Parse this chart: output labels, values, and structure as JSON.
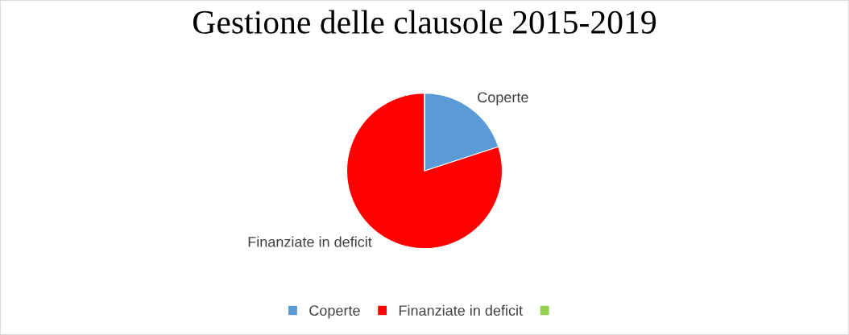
{
  "chart_data": {
    "type": "pie",
    "title": "Gestione delle clausole 2015-2019",
    "categories": [
      "Coperte",
      "Finanziate in deficit",
      null
    ],
    "values": [
      20,
      80,
      0
    ],
    "colors": [
      "#5b9bd5",
      "#ff0000",
      "#92d050"
    ],
    "legend": "bottom"
  }
}
